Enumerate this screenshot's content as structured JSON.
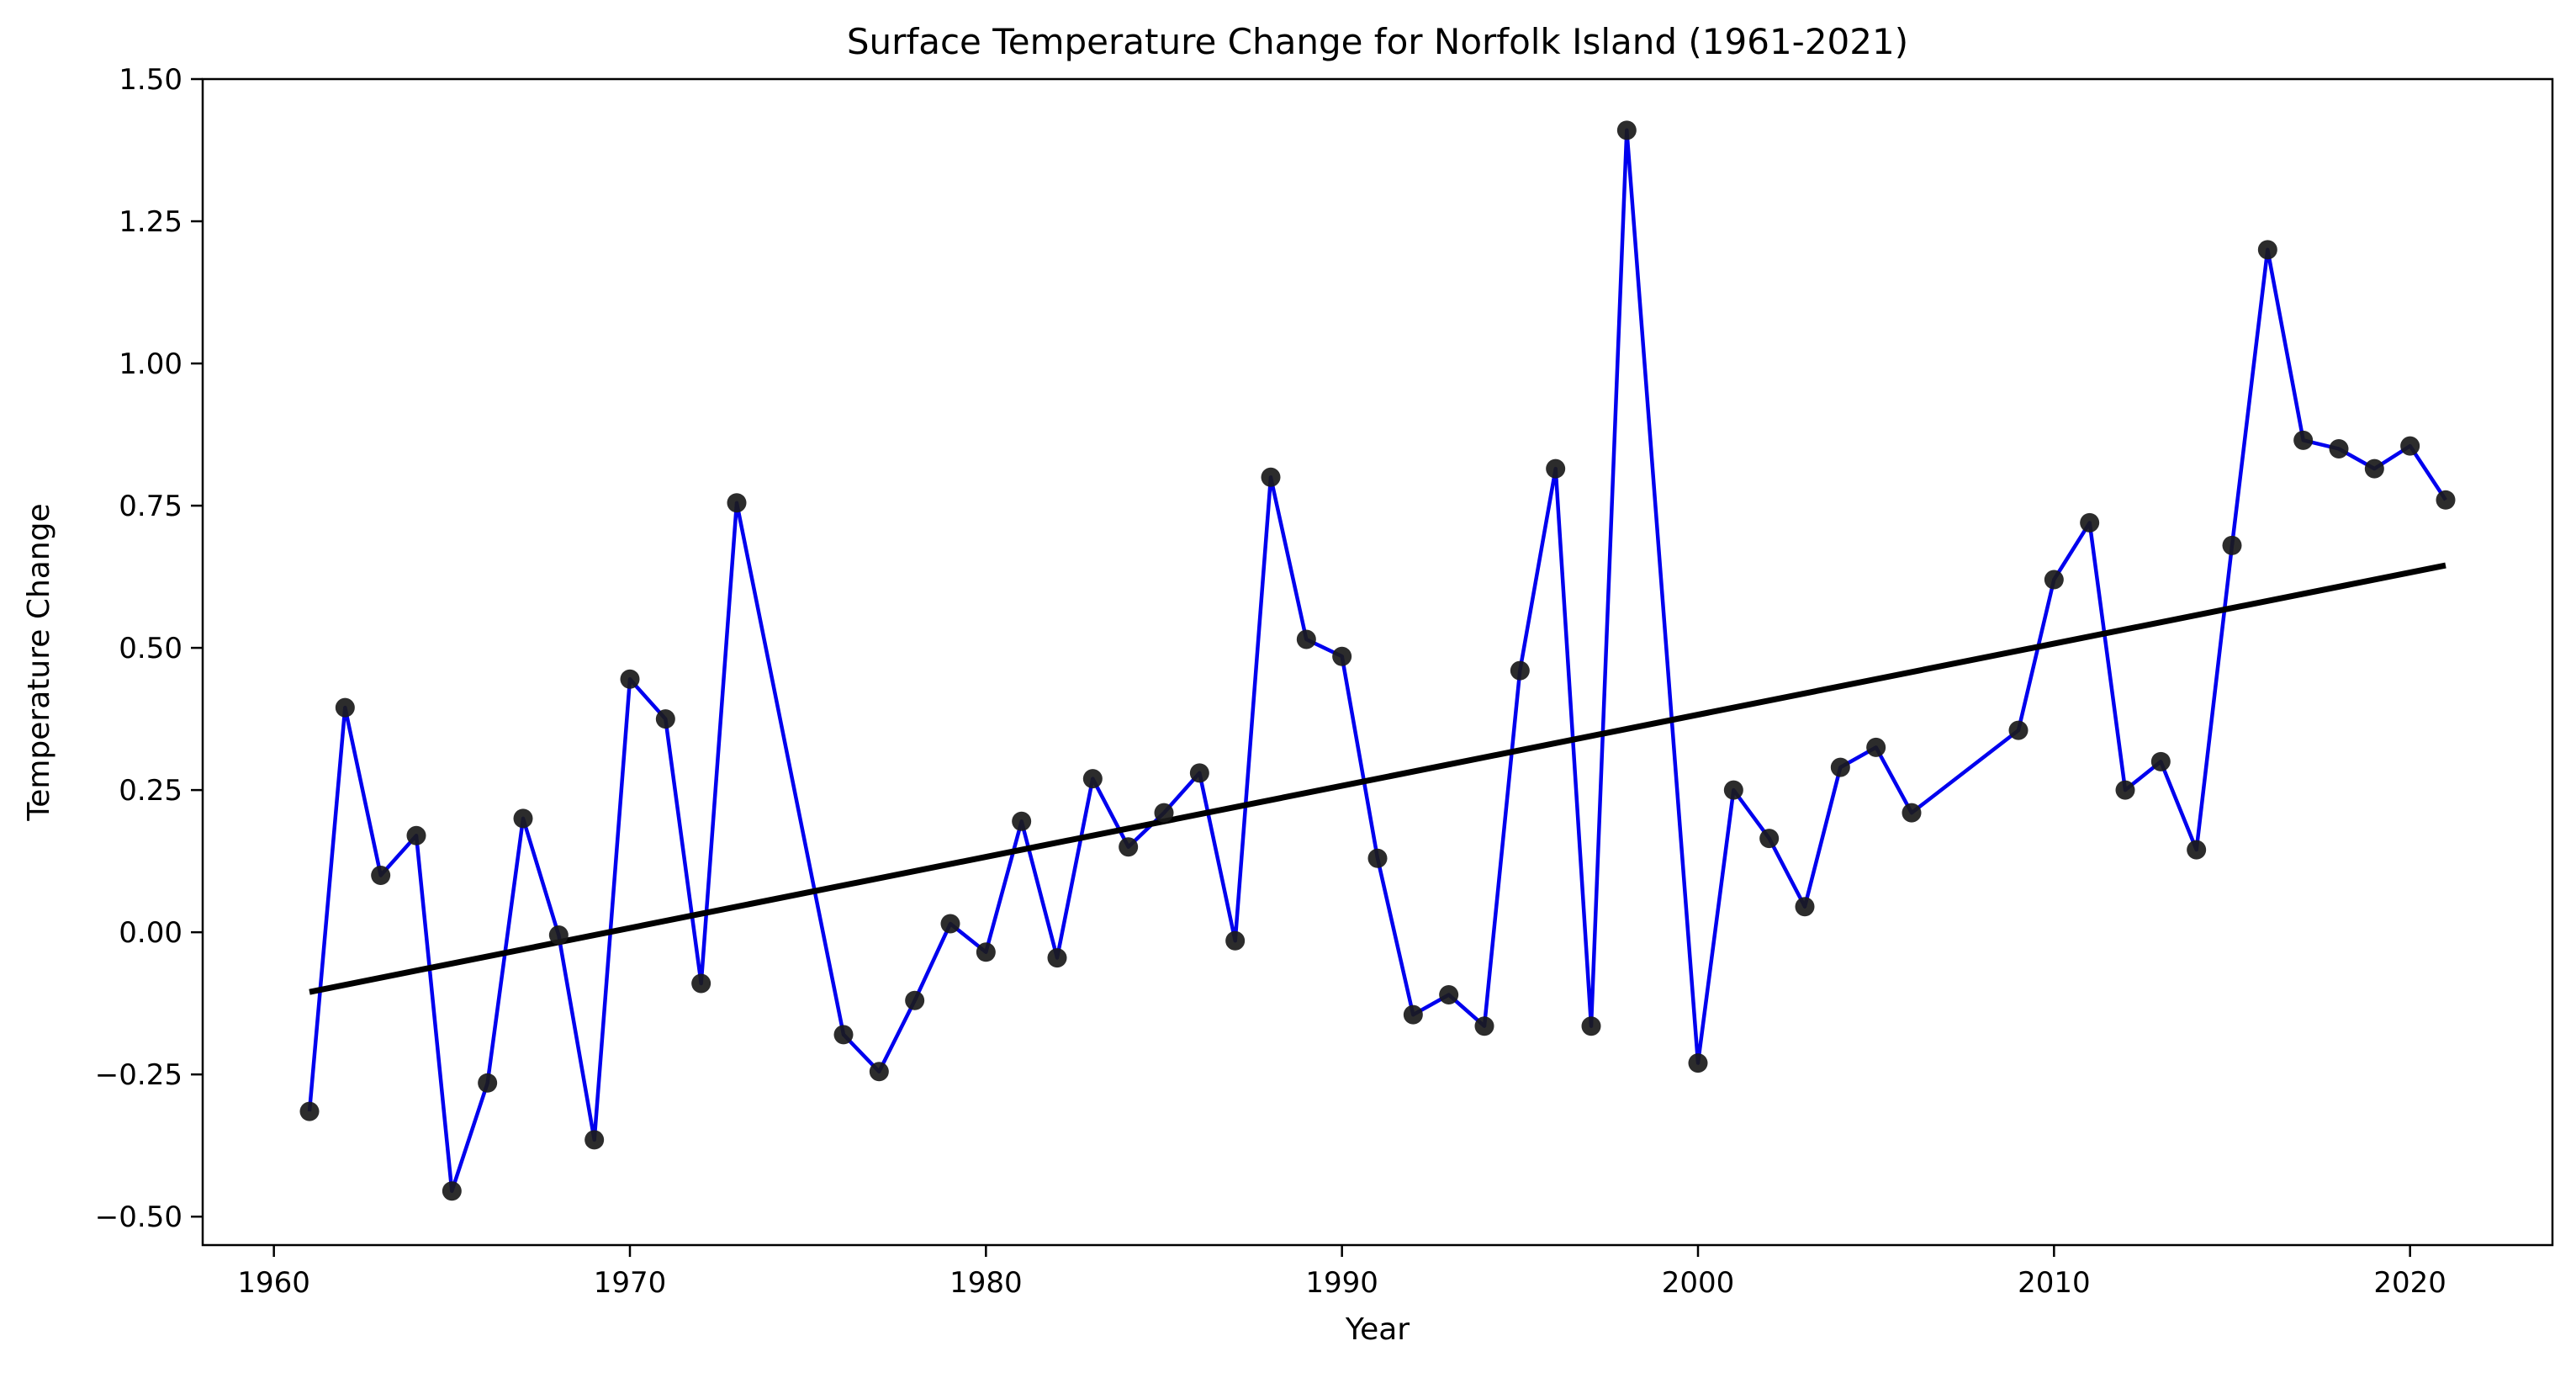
{
  "chart_data": {
    "type": "line",
    "title": "Surface Temperature Change for Norfolk Island (1961-2021)",
    "xlabel": "Year",
    "ylabel": "Temperature Change",
    "xlim": [
      1958.0,
      2024.0
    ],
    "ylim": [
      -0.55,
      1.5
    ],
    "grid": false,
    "legend": "none",
    "x_ticks": [
      1960,
      1970,
      1980,
      1990,
      2000,
      2010,
      2020
    ],
    "x_tick_labels": [
      "1960",
      "1970",
      "1980",
      "1990",
      "2000",
      "2010",
      "2020"
    ],
    "y_ticks": [
      -0.5,
      -0.25,
      0.0,
      0.25,
      0.5,
      0.75,
      1.0,
      1.25,
      1.5
    ],
    "y_tick_labels": [
      "−0.50",
      "−0.25",
      "0.00",
      "0.25",
      "0.50",
      "0.75",
      "1.00",
      "1.25",
      "1.50"
    ],
    "series": [
      {
        "style": "line-with-markers",
        "line_color": "#0000ee",
        "marker_color": "#1a1a1a",
        "points": [
          {
            "x": 1961,
            "y": -0.315
          },
          {
            "x": 1962,
            "y": 0.395
          },
          {
            "x": 1963,
            "y": 0.1
          },
          {
            "x": 1964,
            "y": 0.17
          },
          {
            "x": 1965,
            "y": -0.455
          },
          {
            "x": 1966,
            "y": -0.265
          },
          {
            "x": 1967,
            "y": 0.2
          },
          {
            "x": 1968,
            "y": -0.005
          },
          {
            "x": 1969,
            "y": -0.365
          },
          {
            "x": 1970,
            "y": 0.445
          },
          {
            "x": 1971,
            "y": 0.375
          },
          {
            "x": 1972,
            "y": -0.09
          },
          {
            "x": 1973,
            "y": 0.755
          },
          {
            "x": 1976,
            "y": -0.18
          },
          {
            "x": 1977,
            "y": -0.245
          },
          {
            "x": 1978,
            "y": -0.12
          },
          {
            "x": 1979,
            "y": 0.015
          },
          {
            "x": 1980,
            "y": -0.035
          },
          {
            "x": 1981,
            "y": 0.195
          },
          {
            "x": 1982,
            "y": -0.045
          },
          {
            "x": 1983,
            "y": 0.27
          },
          {
            "x": 1984,
            "y": 0.15
          },
          {
            "x": 1985,
            "y": 0.21
          },
          {
            "x": 1986,
            "y": 0.28
          },
          {
            "x": 1987,
            "y": -0.015
          },
          {
            "x": 1988,
            "y": 0.8
          },
          {
            "x": 1989,
            "y": 0.515
          },
          {
            "x": 1990,
            "y": 0.485
          },
          {
            "x": 1991,
            "y": 0.13
          },
          {
            "x": 1992,
            "y": -0.145
          },
          {
            "x": 1993,
            "y": -0.11
          },
          {
            "x": 1994,
            "y": -0.165
          },
          {
            "x": 1995,
            "y": 0.46
          },
          {
            "x": 1996,
            "y": 0.815
          },
          {
            "x": 1997,
            "y": -0.165
          },
          {
            "x": 1998,
            "y": 1.41
          },
          {
            "x": 2000,
            "y": -0.23
          },
          {
            "x": 2001,
            "y": 0.25
          },
          {
            "x": 2002,
            "y": 0.165
          },
          {
            "x": 2003,
            "y": 0.045
          },
          {
            "x": 2004,
            "y": 0.29
          },
          {
            "x": 2005,
            "y": 0.325
          },
          {
            "x": 2006,
            "y": 0.21
          },
          {
            "x": 2009,
            "y": 0.355
          },
          {
            "x": 2010,
            "y": 0.62
          },
          {
            "x": 2011,
            "y": 0.72
          },
          {
            "x": 2012,
            "y": 0.25
          },
          {
            "x": 2013,
            "y": 0.3
          },
          {
            "x": 2014,
            "y": 0.145
          },
          {
            "x": 2015,
            "y": 0.68
          },
          {
            "x": 2016,
            "y": 1.2
          },
          {
            "x": 2017,
            "y": 0.865
          },
          {
            "x": 2018,
            "y": 0.85
          },
          {
            "x": 2019,
            "y": 0.815
          },
          {
            "x": 2020,
            "y": 0.855
          },
          {
            "x": 2021,
            "y": 0.76
          }
        ]
      }
    ],
    "trend_line": {
      "color": "#000000",
      "start": {
        "x": 1961,
        "y": -0.105
      },
      "end": {
        "x": 2021,
        "y": 0.645
      }
    }
  }
}
